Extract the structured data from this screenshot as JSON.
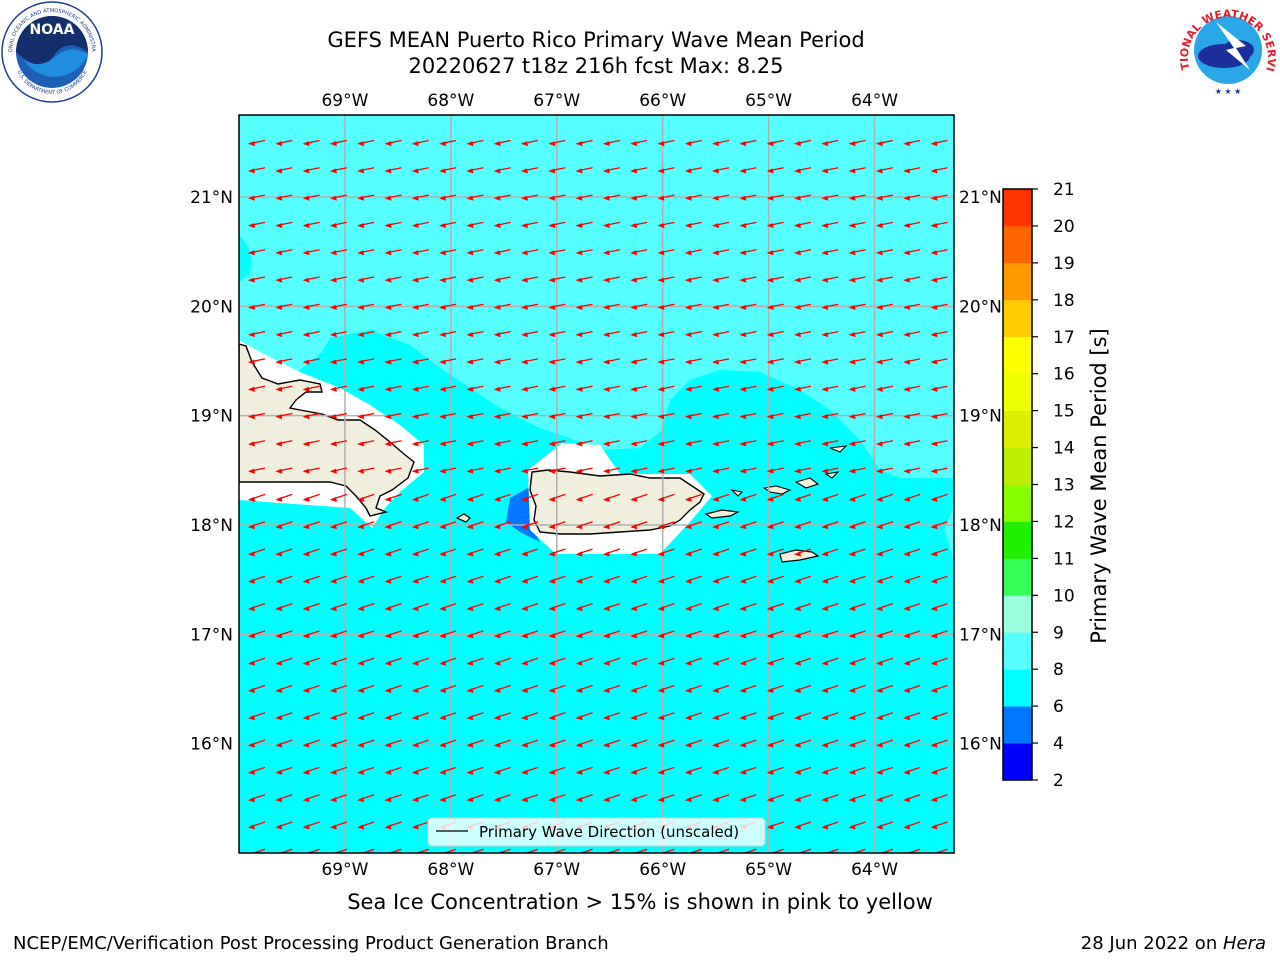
{
  "header": {
    "title_line1": "GEFS MEAN Puerto Rico Primary Wave Mean Period",
    "title_line2": "20220627 t18z 216h fcst   Max: 8.25"
  },
  "logos": {
    "noaa_text": "NOAA",
    "noaa_ring_top": "NATIONAL OCEANIC AND ATMOSPHERIC ADMINISTRATION",
    "noaa_ring_bottom": "U.S. DEPARTMENT OF COMMERCE",
    "nws_ring": "NATIONAL WEATHER SERVICE"
  },
  "map": {
    "lon_labels": [
      "69°W",
      "68°W",
      "67°W",
      "66°W",
      "65°W",
      "64°W"
    ],
    "lat_labels": [
      "21°N",
      "20°N",
      "19°N",
      "18°N",
      "17°N",
      "16°N"
    ],
    "lon_range": [
      -70.0,
      -63.25
    ],
    "lat_range": [
      15.0,
      21.75
    ],
    "legend_label": "Primary Wave Direction (unscaled)",
    "arrow_color": "#ff0000",
    "land_color": "#f0eedc",
    "sea_colors": {
      "six_to_eight": "#00ffff",
      "eight_to_nine": "#55ffff",
      "four_to_six": "#0077ff"
    }
  },
  "colorbar": {
    "label": "Primary Wave Mean Period [s]",
    "ticks": [
      "2",
      "4",
      "6",
      "8",
      "9",
      "10",
      "11",
      "12",
      "13",
      "14",
      "15",
      "16",
      "17",
      "18",
      "19",
      "20",
      "21"
    ],
    "colors": [
      "#0000ff",
      "#0077ff",
      "#00ffff",
      "#55ffff",
      "#99ffdd",
      "#33ff55",
      "#22ee00",
      "#88ff00",
      "#bbee00",
      "#ddee00",
      "#eeff00",
      "#ffff00",
      "#ffcc00",
      "#ff9900",
      "#ff6600",
      "#ff3300",
      "#ff0000"
    ]
  },
  "subtitle": "Sea Ice Concentration > 15% is shown in pink to yellow",
  "footer": {
    "left": "NCEP/EMC/Verification Post Processing Product Generation Branch",
    "right_prefix": "28 Jun 2022 on ",
    "right_machine": "Hera"
  }
}
